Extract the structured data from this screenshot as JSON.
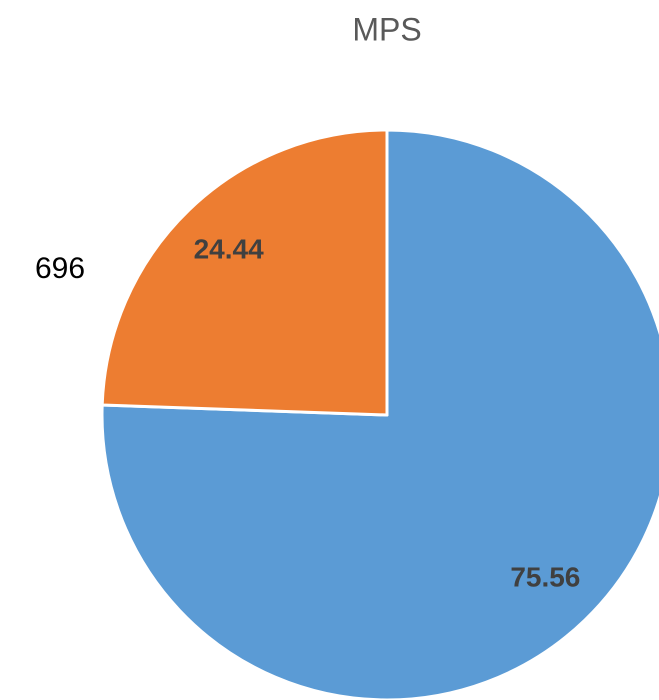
{
  "chart_data": {
    "type": "pie",
    "title": "MPS",
    "categories": [
      null,
      "696"
    ],
    "values": [
      75.56,
      24.44
    ],
    "colors": [
      "#5b9bd5",
      "#ed7d31"
    ]
  }
}
